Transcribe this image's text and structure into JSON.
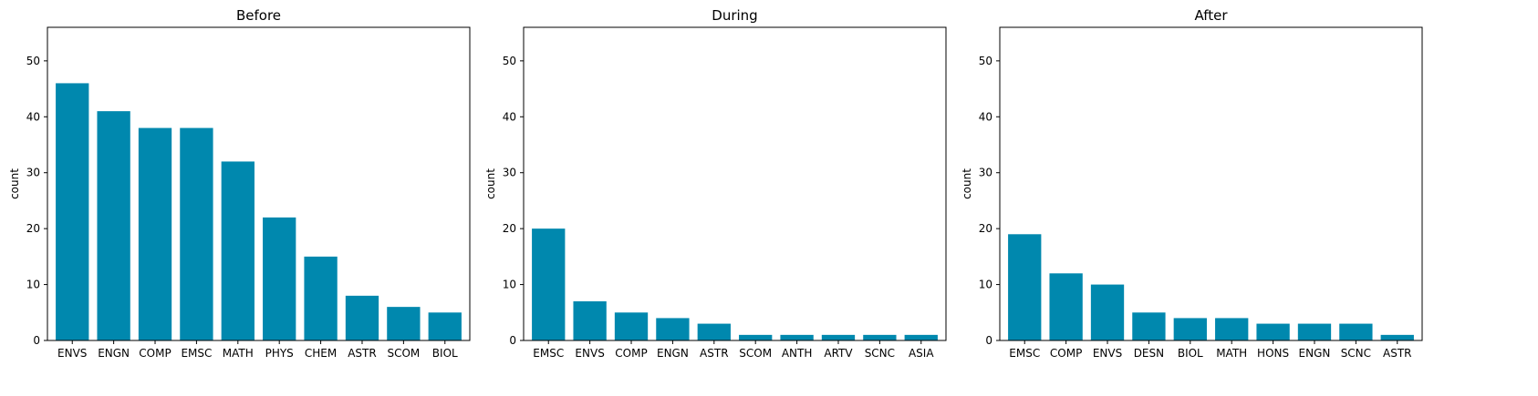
{
  "chart_data": [
    {
      "type": "bar",
      "title": "Before",
      "xlabel": "",
      "ylabel": "count",
      "ylim": [
        0,
        56
      ],
      "yticks": [
        0,
        10,
        20,
        30,
        40,
        50
      ],
      "categories": [
        "ENVS",
        "ENGN",
        "COMP",
        "EMSC",
        "MATH",
        "PHYS",
        "CHEM",
        "ASTR",
        "SCOM",
        "BIOL"
      ],
      "values": [
        46,
        41,
        38,
        38,
        32,
        22,
        15,
        8,
        6,
        5
      ]
    },
    {
      "type": "bar",
      "title": "During",
      "xlabel": "",
      "ylabel": "count",
      "ylim": [
        0,
        56
      ],
      "yticks": [
        0,
        10,
        20,
        30,
        40,
        50
      ],
      "categories": [
        "EMSC",
        "ENVS",
        "COMP",
        "ENGN",
        "ASTR",
        "SCOM",
        "ANTH",
        "ARTV",
        "SCNC",
        "ASIA"
      ],
      "values": [
        20,
        7,
        5,
        4,
        3,
        1,
        1,
        1,
        1,
        1
      ]
    },
    {
      "type": "bar",
      "title": "After",
      "xlabel": "",
      "ylabel": "count",
      "ylim": [
        0,
        56
      ],
      "yticks": [
        0,
        10,
        20,
        30,
        40,
        50
      ],
      "categories": [
        "EMSC",
        "COMP",
        "ENVS",
        "DESN",
        "BIOL",
        "MATH",
        "HONS",
        "ENGN",
        "SCNC",
        "ASTR"
      ],
      "values": [
        19,
        12,
        10,
        5,
        4,
        4,
        3,
        3,
        3,
        1
      ]
    }
  ],
  "colors": {
    "bar": "#0088AE",
    "axis": "#000000",
    "background": "#ffffff"
  }
}
